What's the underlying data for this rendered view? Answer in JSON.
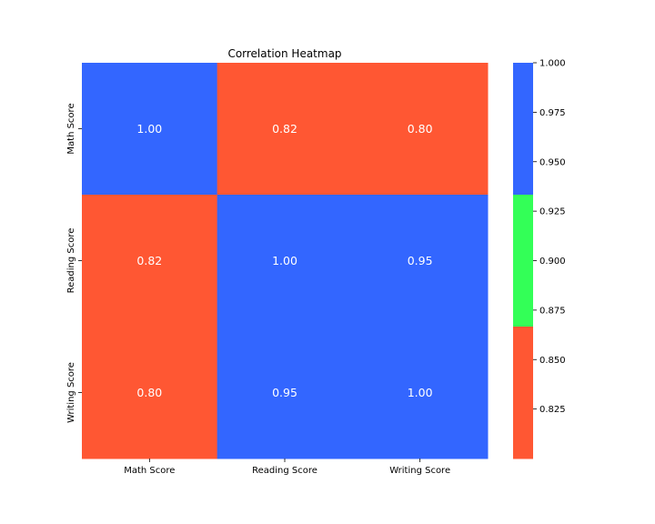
{
  "chart_data": {
    "type": "heatmap",
    "title": "Correlation Heatmap",
    "xlabel": "",
    "ylabel": "",
    "x_categories": [
      "Math Score",
      "Reading Score",
      "Writing Score"
    ],
    "y_categories": [
      "Math Score",
      "Reading Score",
      "Writing Score"
    ],
    "values": [
      [
        1.0,
        0.82,
        0.8
      ],
      [
        0.82,
        1.0,
        0.95
      ],
      [
        0.8,
        0.95,
        1.0
      ]
    ],
    "annotation_format": "2 decimals",
    "colormap": {
      "type": "discrete",
      "colors": [
        "#ff5733",
        "#33ff57",
        "#3366ff"
      ],
      "vmin": 0.8,
      "vmax": 1.0,
      "ticks": [
        0.825,
        0.85,
        0.875,
        0.9,
        0.925,
        0.95,
        0.975,
        1.0
      ],
      "tick_labels": [
        "0.825",
        "0.850",
        "0.875",
        "0.900",
        "0.925",
        "0.950",
        "0.975",
        "1.000"
      ]
    },
    "grid": false,
    "colorbar_position": "right"
  }
}
